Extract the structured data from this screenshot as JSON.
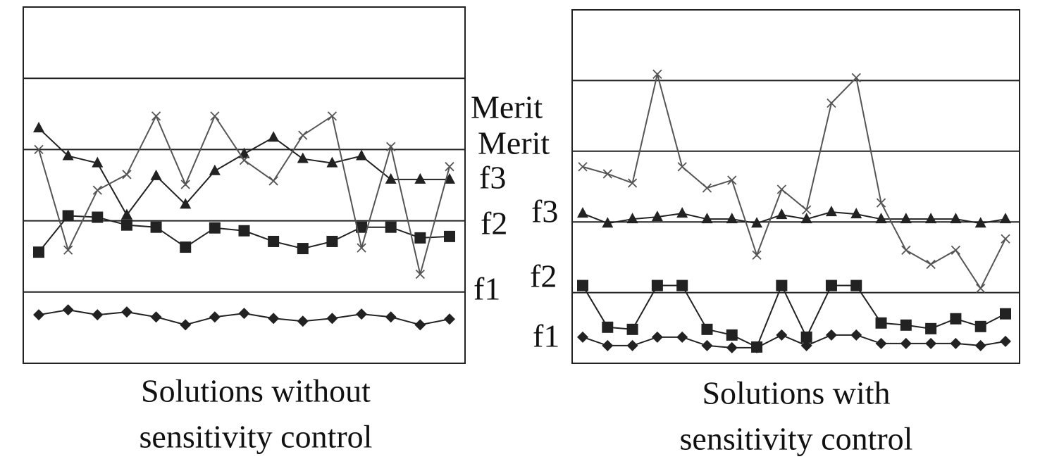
{
  "chart_data": [
    {
      "type": "line",
      "caption": [
        "Solutions without",
        "sensitivity control"
      ],
      "categories": [
        null,
        null,
        null,
        null,
        null,
        null,
        null,
        null,
        null,
        null,
        null,
        null,
        null,
        null,
        null
      ],
      "ylim": [
        0,
        5
      ],
      "yticks": [
        0,
        1,
        2,
        3,
        4,
        5
      ],
      "grid": true,
      "series": [
        {
          "name": "f1",
          "marker": "diamond",
          "color": "#222",
          "values": [
            0.68,
            0.75,
            0.68,
            0.72,
            0.65,
            0.54,
            0.65,
            0.7,
            0.63,
            0.59,
            0.63,
            0.69,
            0.65,
            0.54,
            0.62
          ]
        },
        {
          "name": "f2",
          "marker": "square",
          "color": "#222",
          "values": [
            1.56,
            2.07,
            2.05,
            1.94,
            1.91,
            1.63,
            1.9,
            1.86,
            1.71,
            1.61,
            1.71,
            1.91,
            1.91,
            1.76,
            1.78
          ]
        },
        {
          "name": "f3",
          "marker": "triangle",
          "color": "#222",
          "values": [
            3.3,
            2.91,
            2.81,
            2.08,
            2.63,
            2.23,
            2.7,
            2.94,
            3.17,
            2.87,
            2.81,
            2.91,
            2.58,
            2.58,
            2.58
          ]
        },
        {
          "name": "Merit",
          "marker": "cross",
          "color": "#555",
          "values": [
            3.0,
            1.59,
            2.43,
            2.65,
            3.47,
            2.51,
            3.47,
            2.85,
            2.56,
            3.2,
            3.47,
            1.62,
            3.04,
            1.25,
            2.76
          ]
        }
      ]
    },
    {
      "type": "line",
      "caption": [
        "Solutions with",
        "sensitivity control"
      ],
      "categories": [
        null,
        null,
        null,
        null,
        null,
        null,
        null,
        null,
        null,
        null,
        null,
        null,
        null,
        null,
        null,
        null,
        null,
        null
      ],
      "ylim": [
        0,
        5
      ],
      "yticks": [
        0,
        1,
        2,
        3,
        4,
        5
      ],
      "grid": true,
      "series": [
        {
          "name": "f1",
          "marker": "diamond",
          "color": "#222",
          "values": [
            0.37,
            0.25,
            0.25,
            0.37,
            0.37,
            0.25,
            0.22,
            0.22,
            0.4,
            0.25,
            0.4,
            0.4,
            0.28,
            0.28,
            0.28,
            0.28,
            0.25,
            0.31
          ]
        },
        {
          "name": "f2",
          "marker": "square",
          "color": "#222",
          "values": [
            1.1,
            0.51,
            0.48,
            1.1,
            1.1,
            0.48,
            0.4,
            0.23,
            1.1,
            0.37,
            1.1,
            1.1,
            0.57,
            0.54,
            0.49,
            0.63,
            0.52,
            0.7
          ]
        },
        {
          "name": "f3",
          "marker": "triangle",
          "color": "#222",
          "values": [
            2.12,
            1.98,
            2.04,
            2.07,
            2.12,
            2.04,
            2.04,
            1.98,
            2.1,
            2.04,
            2.14,
            2.11,
            2.04,
            2.04,
            2.04,
            2.04,
            1.98,
            2.04
          ]
        },
        {
          "name": "Merit",
          "marker": "cross",
          "color": "#555",
          "values": [
            2.78,
            2.68,
            2.55,
            4.09,
            2.78,
            2.48,
            2.59,
            1.53,
            2.46,
            2.17,
            3.68,
            4.04,
            2.27,
            1.6,
            1.4,
            1.6,
            1.06,
            1.76
          ]
        }
      ]
    }
  ]
}
